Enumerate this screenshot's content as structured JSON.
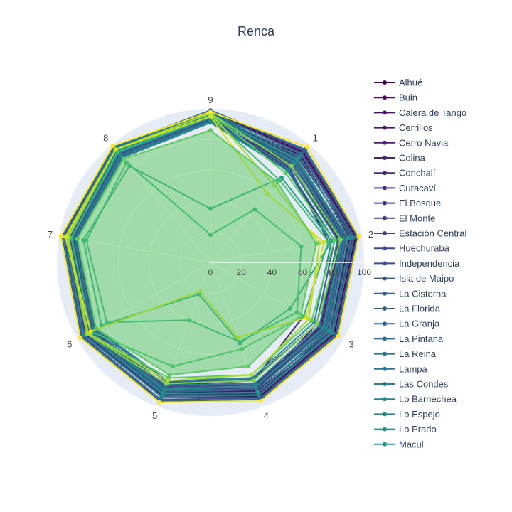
{
  "chart_data": {
    "type": "radar",
    "title": "Renca",
    "theta_labels": [
      "1",
      "2",
      "3",
      "4",
      "5",
      "6",
      "7",
      "8",
      "9"
    ],
    "radial_ticks": [
      "0",
      "20",
      "40",
      "60",
      "80",
      "100"
    ],
    "rlim": [
      0,
      100
    ],
    "legend_position": "right",
    "highlight_series": "Renca",
    "series": [
      {
        "name": "Alhué",
        "color": "#440154",
        "values": [
          94,
          96,
          93,
          93,
          93,
          95,
          94,
          97,
          98
        ]
      },
      {
        "name": "Buin",
        "color": "#46085c",
        "values": [
          91,
          92,
          90,
          89,
          90,
          92,
          92,
          95,
          96
        ]
      },
      {
        "name": "Calera de Tango",
        "color": "#471063",
        "values": [
          87,
          88,
          85,
          84,
          85,
          88,
          89,
          92,
          94
        ]
      },
      {
        "name": "Cerrillos",
        "color": "#481769",
        "values": [
          82,
          85,
          83,
          86,
          88,
          91,
          90,
          93,
          93
        ]
      },
      {
        "name": "Cerro Navia",
        "color": "#481d6f",
        "values": [
          78,
          82,
          80,
          88,
          92,
          93,
          92,
          91,
          95
        ]
      },
      {
        "name": "Colina",
        "color": "#482475",
        "values": [
          89,
          94,
          92,
          90,
          89,
          92,
          93,
          94,
          96
        ]
      },
      {
        "name": "Conchalí",
        "color": "#472a7a",
        "values": [
          80,
          78,
          70,
          82,
          85,
          90,
          91,
          92,
          93
        ]
      },
      {
        "name": "Curacaví",
        "color": "#46307e",
        "values": [
          93,
          95,
          91,
          91,
          92,
          94,
          95,
          96,
          97
        ]
      },
      {
        "name": "El Bosque",
        "color": "#453781",
        "values": [
          85,
          88,
          86,
          87,
          88,
          91,
          92,
          93,
          94
        ]
      },
      {
        "name": "El Monte",
        "color": "#433d84",
        "values": [
          92,
          94,
          90,
          92,
          93,
          95,
          96,
          97,
          98
        ]
      },
      {
        "name": "Estación Central",
        "color": "#414287",
        "values": [
          84,
          86,
          84,
          85,
          86,
          88,
          90,
          91,
          92
        ]
      },
      {
        "name": "Huechuraba",
        "color": "#3f4889",
        "values": [
          88,
          90,
          88,
          90,
          91,
          93,
          94,
          95,
          96
        ]
      },
      {
        "name": "Independencia",
        "color": "#3c4f8a",
        "values": [
          83,
          84,
          82,
          84,
          86,
          89,
          90,
          92,
          93
        ]
      },
      {
        "name": "Isla de Maipo",
        "color": "#3a548c",
        "values": [
          95,
          97,
          94,
          94,
          95,
          96,
          97,
          98,
          99
        ]
      },
      {
        "name": "La Cisterna",
        "color": "#375a8c",
        "values": [
          86,
          87,
          85,
          86,
          87,
          90,
          91,
          93,
          94
        ]
      },
      {
        "name": "La Florida",
        "color": "#34608d",
        "values": [
          84,
          88,
          86,
          88,
          90,
          92,
          93,
          94,
          95
        ]
      },
      {
        "name": "La Granja",
        "color": "#31668e",
        "values": [
          79,
          82,
          80,
          81,
          83,
          87,
          89,
          90,
          92
        ]
      },
      {
        "name": "La Pintana",
        "color": "#2f6b8e",
        "values": [
          96,
          98,
          95,
          95,
          96,
          97,
          98,
          98,
          99
        ]
      },
      {
        "name": "La Reina",
        "color": "#2c718e",
        "values": [
          87,
          89,
          87,
          88,
          89,
          91,
          92,
          94,
          95
        ]
      },
      {
        "name": "Lampa",
        "color": "#2a768e",
        "values": [
          92,
          95,
          92,
          92,
          93,
          95,
          96,
          97,
          98
        ]
      },
      {
        "name": "Las Condes",
        "color": "#277f8e",
        "values": [
          81,
          84,
          82,
          84,
          85,
          88,
          90,
          91,
          92
        ]
      },
      {
        "name": "Lo Barnechea",
        "color": "#25848e",
        "values": [
          90,
          93,
          91,
          92,
          93,
          95,
          96,
          97,
          97
        ]
      },
      {
        "name": "Lo Espejo",
        "color": "#23898e",
        "values": [
          78,
          80,
          78,
          80,
          82,
          86,
          88,
          89,
          91
        ]
      },
      {
        "name": "Lo Prado",
        "color": "#21908d",
        "values": [
          85,
          87,
          85,
          86,
          88,
          90,
          92,
          93,
          94
        ]
      },
      {
        "name": "Macul",
        "color": "#1f958b",
        "values": [
          88,
          91,
          89,
          90,
          91,
          93,
          94,
          95,
          96
        ]
      },
      {
        "name": "",
        "color": "#1fa088",
        "values": [
          72,
          80,
          60,
          56,
          22,
          82,
          84,
          82,
          35
        ]
      },
      {
        "name": "",
        "color": "#28ae80",
        "values": [
          45,
          60,
          65,
          55,
          40,
          78,
          82,
          85,
          18
        ]
      },
      {
        "name": "",
        "color": "#3fbc73",
        "values": [
          70,
          78,
          70,
          60,
          72,
          90,
          92,
          94,
          95
        ]
      },
      {
        "name": "",
        "color": "#5ec962",
        "values": [
          76,
          82,
          76,
          78,
          80,
          92,
          94,
          96,
          97
        ]
      },
      {
        "name": "",
        "color": "#84d44b",
        "values": [
          82,
          86,
          80,
          82,
          84,
          93,
          95,
          96,
          97
        ]
      },
      {
        "name": "",
        "color": "#addc30",
        "values": [
          65,
          72,
          74,
          78,
          82,
          92,
          94,
          96,
          97
        ]
      },
      {
        "name": "",
        "color": "#d8e219",
        "values": [
          58,
          75,
          72,
          52,
          20,
          90,
          96,
          96,
          95
        ]
      },
      {
        "name": "",
        "color": "#fde725",
        "values": [
          98,
          98,
          96,
          96,
          97,
          98,
          99,
          99,
          98
        ]
      },
      {
        "name": "Renca",
        "color": "#5ec962",
        "values": [
          68,
          70,
          68,
          72,
          78,
          86,
          88,
          88,
          86
        ]
      }
    ]
  }
}
